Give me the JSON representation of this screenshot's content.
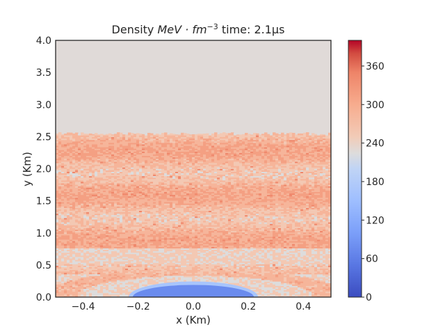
{
  "chart_data": {
    "type": "heatmap",
    "title_prefix": "Density ",
    "title_math": "MeV · fm",
    "title_exp": "−3",
    "title_suffix": " time: 2.1μs",
    "xlabel": "x (Km)",
    "ylabel": "y (Km)",
    "xlim": [
      -0.5,
      0.5
    ],
    "ylim": [
      0.0,
      4.0
    ],
    "xticks": [
      -0.4,
      -0.2,
      0.0,
      0.2,
      0.4
    ],
    "xtick_labels": [
      "−0.4",
      "−0.2",
      "0.0",
      "0.2",
      "0.4"
    ],
    "yticks": [
      0.0,
      0.5,
      1.0,
      1.5,
      2.0,
      2.5,
      3.0,
      3.5,
      4.0
    ],
    "ytick_labels": [
      "0.0",
      "0.5",
      "1.0",
      "1.5",
      "2.0",
      "2.5",
      "3.0",
      "3.5",
      "4.0"
    ],
    "colorbar": {
      "colormap": "coolwarm",
      "range": [
        0,
        400
      ],
      "ticks": [
        0,
        60,
        120,
        180,
        240,
        300,
        360
      ],
      "tick_labels": [
        "0",
        "60",
        "120",
        "180",
        "240",
        "300",
        "360"
      ]
    },
    "regions": [
      {
        "description": "uniform upper layer",
        "y_range": [
          2.52,
          4.0
        ],
        "value": 228
      },
      {
        "description": "noisy band",
        "y_range": [
          0.3,
          2.52
        ],
        "value_range": [
          210,
          320
        ],
        "mean": 265
      },
      {
        "description": "near-surface layer",
        "y_range": [
          0.0,
          0.35
        ],
        "value": 230
      },
      {
        "description": "low-density dome",
        "center_x": 0.0,
        "half_width_x": 0.22,
        "height_y": 0.19,
        "value": 75
      }
    ],
    "grid": false
  }
}
